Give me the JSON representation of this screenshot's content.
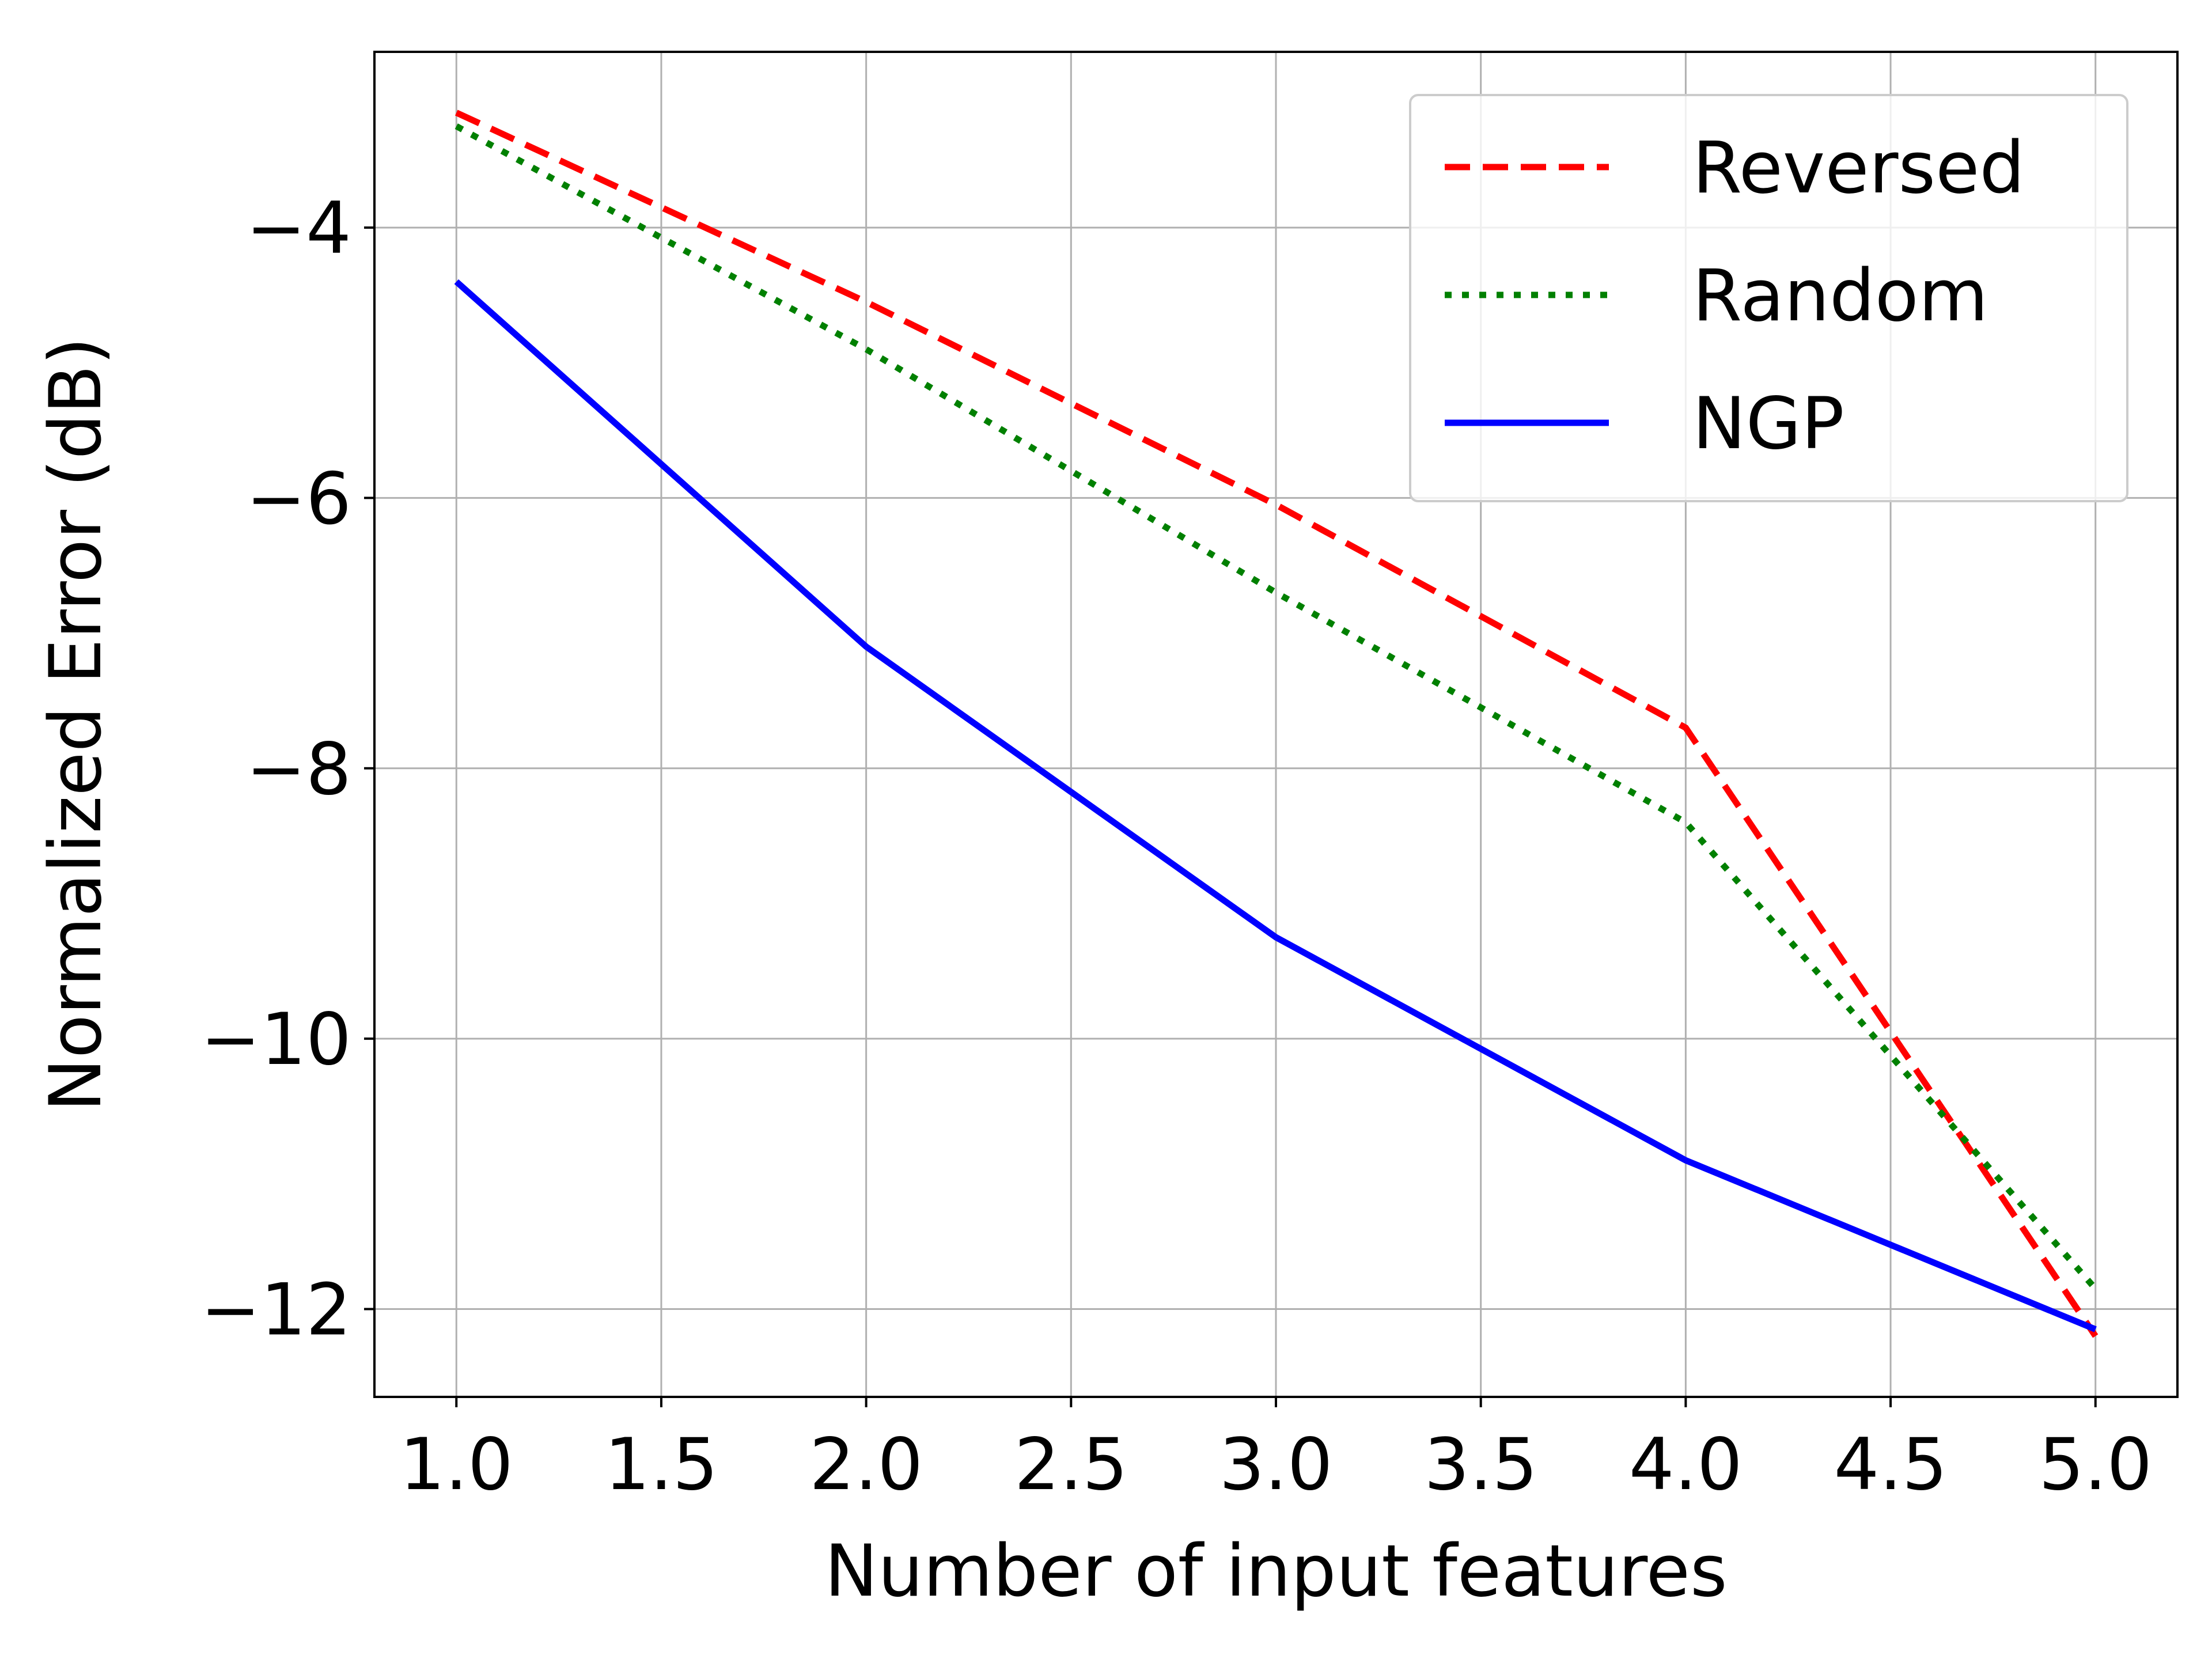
{
  "chart_data": {
    "type": "line",
    "xlabel": "Number of input features",
    "ylabel": "Normalized Error (dB)",
    "x": [
      1,
      2,
      3,
      4,
      5
    ],
    "xlim": [
      0.8,
      5.2
    ],
    "ylim": [
      -12.65,
      -2.7
    ],
    "xticks": [
      1.0,
      1.5,
      2.0,
      2.5,
      3.0,
      3.5,
      4.0,
      4.5,
      5.0
    ],
    "xtick_labels": [
      "1.0",
      "1.5",
      "2.0",
      "2.5",
      "3.0",
      "3.5",
      "4.0",
      "4.5",
      "5.0"
    ],
    "yticks": [
      -4,
      -6,
      -8,
      -10,
      -12
    ],
    "ytick_labels": [
      "−4",
      "−6",
      "−8",
      "−10",
      "−12"
    ],
    "grid": true,
    "legend_position": "top-right",
    "series": [
      {
        "name": "Reversed",
        "values": [
          -3.15,
          -4.55,
          -6.05,
          -7.7,
          -12.2
        ],
        "color": "#ff0000",
        "style": "dashed"
      },
      {
        "name": "Random",
        "values": [
          -3.25,
          -4.9,
          -6.7,
          -8.4,
          -11.85
        ],
        "color": "#008000",
        "style": "dotted"
      },
      {
        "name": "NGP",
        "values": [
          -4.4,
          -7.1,
          -9.25,
          -10.9,
          -12.15
        ],
        "color": "#0000ff",
        "style": "solid"
      }
    ]
  }
}
